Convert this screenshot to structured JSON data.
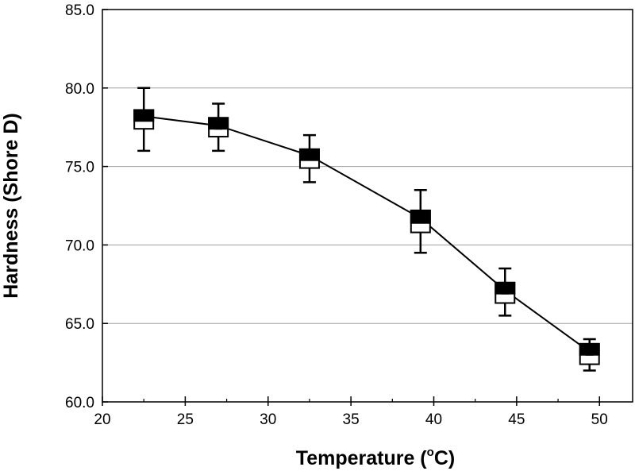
{
  "chart_data": {
    "type": "box",
    "title": "",
    "xlabel_main": "Temperature (",
    "xlabel_sup": "o",
    "xlabel_end": "C)",
    "ylabel": "Hardness (Shore D)",
    "xlim": [
      20,
      52
    ],
    "ylim": [
      60,
      85
    ],
    "xticks": [
      20,
      25,
      30,
      35,
      40,
      45,
      50
    ],
    "yticks": [
      60,
      65,
      70,
      75,
      80,
      85
    ],
    "ytick_labels": [
      "60.0",
      "65.0",
      "70.0",
      "75.0",
      "80.0",
      "85.0"
    ],
    "grid": "horizontal",
    "series": [
      {
        "name": "Hardness",
        "points": [
          {
            "x": 22.5,
            "mean": 78.2,
            "q1": 77.4,
            "median": 77.9,
            "q3": 78.6,
            "min": 76.0,
            "max": 80.0
          },
          {
            "x": 27.0,
            "mean": 77.6,
            "q1": 76.9,
            "median": 77.4,
            "q3": 78.1,
            "min": 76.0,
            "max": 79.0
          },
          {
            "x": 32.5,
            "mean": 75.7,
            "q1": 74.9,
            "median": 75.4,
            "q3": 76.1,
            "min": 74.0,
            "max": 77.0
          },
          {
            "x": 39.2,
            "mean": 71.7,
            "q1": 70.8,
            "median": 71.4,
            "q3": 72.2,
            "min": 69.5,
            "max": 73.5
          },
          {
            "x": 44.3,
            "mean": 67.1,
            "q1": 66.3,
            "median": 66.9,
            "q3": 67.6,
            "min": 65.5,
            "max": 68.5
          },
          {
            "x": 49.4,
            "mean": 63.2,
            "q1": 62.4,
            "median": 63.0,
            "q3": 63.7,
            "min": 62.0,
            "max": 64.0
          }
        ]
      }
    ]
  }
}
